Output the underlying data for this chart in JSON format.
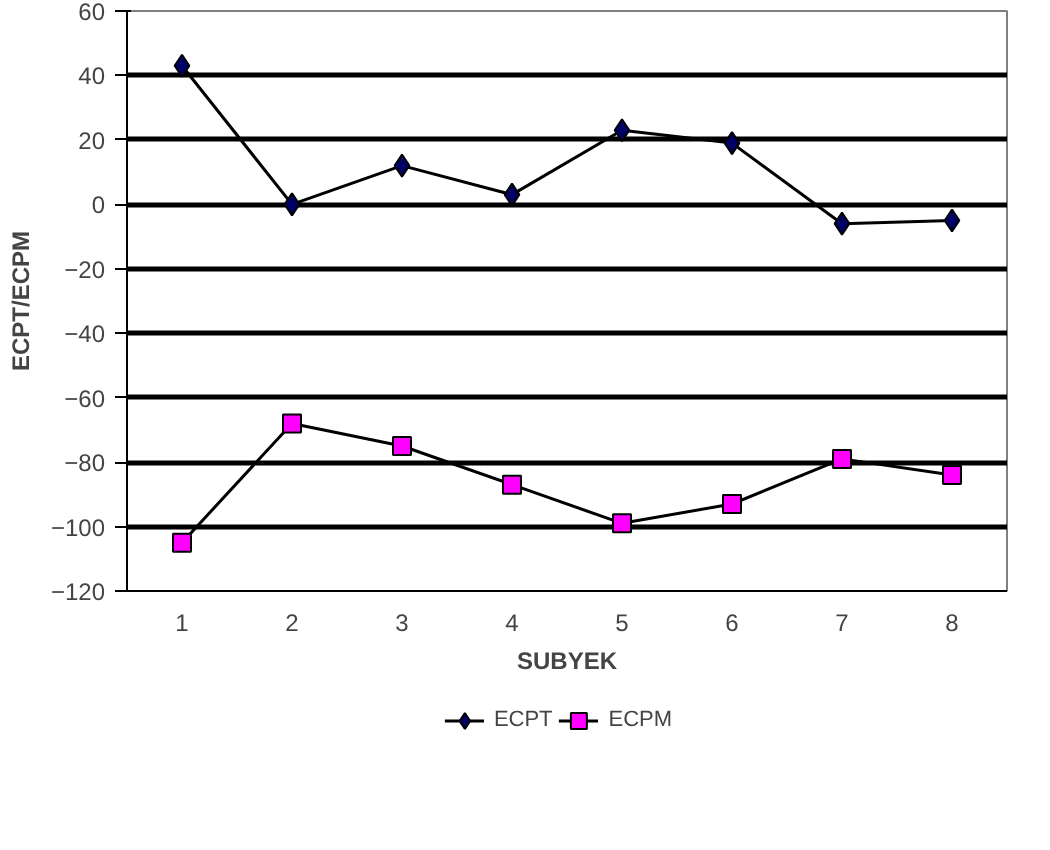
{
  "chart_data": {
    "type": "line",
    "xlabel": "SUBYEK",
    "ylabel": "ECPT/ECPM",
    "categories": [
      "1",
      "2",
      "3",
      "4",
      "5",
      "6",
      "7",
      "8"
    ],
    "series": [
      {
        "name": "ECPT",
        "color": "#000066",
        "marker": "diamond",
        "values": [
          43,
          0,
          12,
          3,
          23,
          19,
          -6,
          -5
        ]
      },
      {
        "name": "ECPM",
        "color": "#ff00ff",
        "marker": "square",
        "values": [
          -105,
          -68,
          -75,
          -87,
          -99,
          -93,
          -79,
          -84
        ]
      }
    ],
    "ylim": [
      -120,
      60
    ],
    "yticks": [
      -120,
      -100,
      -80,
      -60,
      -40,
      -20,
      0,
      20,
      40,
      60
    ],
    "grid": "y",
    "legend": "bottom",
    "line_style": "solid"
  }
}
